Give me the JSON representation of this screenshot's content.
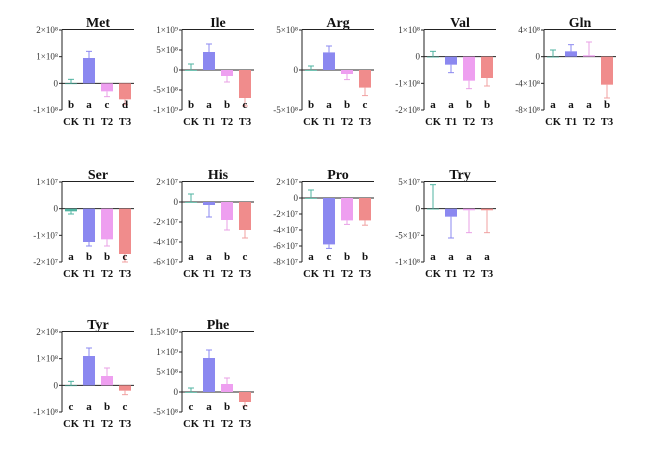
{
  "colors": {
    "CK": "#4fb3a0",
    "T1": "#8b88f0",
    "T2": "#ee9ff0",
    "T3": "#f08c8c",
    "errorbar": {
      "CK": "#4fb3a0",
      "T1": "#8b88f0",
      "T2": "#e8a0e6",
      "T3": "#f0a0a0"
    }
  },
  "chart_data": [
    {
      "type": "bar",
      "title": "Met",
      "categories": [
        "CK",
        "T1",
        "T2",
        "T3"
      ],
      "values": [
        0,
        95000000,
        -30000000,
        -60000000
      ],
      "errors": [
        15000000,
        25000000,
        20000000,
        20000000
      ],
      "significance": [
        "b",
        "a",
        "c",
        "d"
      ],
      "ylim": [
        -100000000,
        200000000
      ],
      "yticks": [
        {
          "v": 200000000,
          "label": "2×10⁸"
        },
        {
          "v": 100000000,
          "label": "1×10⁸"
        },
        {
          "v": 0,
          "label": "0"
        },
        {
          "v": -100000000,
          "label": "-1×10⁸"
        }
      ]
    },
    {
      "type": "bar",
      "title": "Ile",
      "categories": [
        "CK",
        "T1",
        "T2",
        "T3"
      ],
      "values": [
        0,
        450000000,
        -150000000,
        -700000000
      ],
      "errors": [
        150000000,
        200000000,
        150000000,
        200000000
      ],
      "significance": [
        "b",
        "a",
        "b",
        "c"
      ],
      "ylim": [
        -1000000000,
        1000000000
      ],
      "yticks": [
        {
          "v": 1000000000,
          "label": "1×10⁹"
        },
        {
          "v": 500000000,
          "label": "5×10⁸"
        },
        {
          "v": 0,
          "label": "0"
        },
        {
          "v": -500000000,
          "label": "-5×10⁸"
        },
        {
          "v": -1000000000,
          "label": "-1×10⁹"
        }
      ]
    },
    {
      "type": "bar",
      "title": "Arg",
      "categories": [
        "CK",
        "T1",
        "T2",
        "T3"
      ],
      "values": [
        0,
        220000000,
        -50000000,
        -220000000
      ],
      "errors": [
        50000000,
        80000000,
        70000000,
        100000000
      ],
      "significance": [
        "b",
        "a",
        "b",
        "c"
      ],
      "ylim": [
        -500000000,
        500000000
      ],
      "yticks": [
        {
          "v": 500000000,
          "label": "5×10⁸"
        },
        {
          "v": 0,
          "label": "0"
        },
        {
          "v": -500000000,
          "label": "-5×10⁸"
        }
      ]
    },
    {
      "type": "bar",
      "title": "Val",
      "categories": [
        "CK",
        "T1",
        "T2",
        "T3"
      ],
      "values": [
        0,
        -30000000,
        -90000000,
        -80000000
      ],
      "errors": [
        20000000,
        30000000,
        30000000,
        30000000
      ],
      "significance": [
        "a",
        "a",
        "b",
        "b"
      ],
      "ylim": [
        -200000000,
        100000000
      ],
      "yticks": [
        {
          "v": 100000000,
          "label": "1×10⁸"
        },
        {
          "v": 0,
          "label": "0"
        },
        {
          "v": -100000000,
          "label": "-1×10⁸"
        },
        {
          "v": -200000000,
          "label": "-2×10⁸"
        }
      ]
    },
    {
      "type": "bar",
      "title": "Gln",
      "categories": [
        "CK",
        "T1",
        "T2",
        "T3"
      ],
      "values": [
        0,
        80000000,
        20000000,
        -420000000
      ],
      "errors": [
        100000000,
        100000000,
        200000000,
        200000000
      ],
      "significance": [
        "a",
        "a",
        "a",
        "b"
      ],
      "ylim": [
        -800000000,
        400000000
      ],
      "yticks": [
        {
          "v": 400000000,
          "label": "4×10⁸"
        },
        {
          "v": 0,
          "label": "0"
        },
        {
          "v": -400000000,
          "label": "-4×10⁸"
        },
        {
          "v": -800000000,
          "label": "-8×10⁸"
        }
      ]
    },
    {
      "type": "bar",
      "title": "Ser",
      "categories": [
        "CK",
        "T1",
        "T2",
        "T3"
      ],
      "values": [
        -1000000,
        -12500000,
        -11500000,
        -17000000
      ],
      "errors": [
        1000000,
        1500000,
        2500000,
        3000000
      ],
      "significance": [
        "a",
        "b",
        "b",
        "c"
      ],
      "ylim": [
        -20000000,
        10000000
      ],
      "yticks": [
        {
          "v": 10000000,
          "label": "1×10⁷"
        },
        {
          "v": 0,
          "label": "0"
        },
        {
          "v": -10000000,
          "label": "-1×10⁷"
        },
        {
          "v": -20000000,
          "label": "-2×10⁷"
        }
      ]
    },
    {
      "type": "bar",
      "title": "His",
      "categories": [
        "CK",
        "T1",
        "T2",
        "T3"
      ],
      "values": [
        0,
        -3000000,
        -18000000,
        -28000000
      ],
      "errors": [
        8000000,
        12000000,
        10000000,
        8000000
      ],
      "significance": [
        "a",
        "a",
        "b",
        "c"
      ],
      "ylim": [
        -60000000,
        20000000
      ],
      "yticks": [
        {
          "v": 20000000,
          "label": "2×10⁷"
        },
        {
          "v": 0,
          "label": "0"
        },
        {
          "v": -20000000,
          "label": "-2×10⁷"
        },
        {
          "v": -40000000,
          "label": "-4×10⁷"
        },
        {
          "v": -60000000,
          "label": "-6×10⁷"
        }
      ]
    },
    {
      "type": "bar",
      "title": "Pro",
      "categories": [
        "CK",
        "T1",
        "T2",
        "T3"
      ],
      "values": [
        0,
        -58000000,
        -28000000,
        -28000000
      ],
      "errors": [
        10000000,
        5000000,
        5000000,
        6000000
      ],
      "significance": [
        "a",
        "c",
        "b",
        "b"
      ],
      "ylim": [
        -80000000,
        20000000
      ],
      "yticks": [
        {
          "v": 20000000,
          "label": "2×10⁷"
        },
        {
          "v": 0,
          "label": "0"
        },
        {
          "v": -20000000,
          "label": "-2×10⁷"
        },
        {
          "v": -40000000,
          "label": "-4×10⁷"
        },
        {
          "v": -60000000,
          "label": "-6×10⁷"
        },
        {
          "v": -80000000,
          "label": "-8×10⁷"
        }
      ]
    },
    {
      "type": "bar",
      "title": "Try",
      "categories": [
        "CK",
        "T1",
        "T2",
        "T3"
      ],
      "values": [
        0,
        -15000000,
        -3000000,
        -3000000
      ],
      "errors": [
        45000000,
        40000000,
        42000000,
        42000000
      ],
      "significance": [
        "a",
        "a",
        "a",
        "a"
      ],
      "ylim": [
        -100000000,
        50000000
      ],
      "yticks": [
        {
          "v": 50000000,
          "label": "5×10⁷"
        },
        {
          "v": 0,
          "label": "0"
        },
        {
          "v": -50000000,
          "label": "-5×10⁷"
        },
        {
          "v": -100000000,
          "label": "-1×10⁸"
        }
      ]
    },
    {
      "type": "bar",
      "title": "Tyr",
      "categories": [
        "CK",
        "T1",
        "T2",
        "T3"
      ],
      "values": [
        0,
        110000000,
        35000000,
        -20000000
      ],
      "errors": [
        15000000,
        30000000,
        30000000,
        15000000
      ],
      "significance": [
        "c",
        "a",
        "b",
        "c"
      ],
      "ylim": [
        -100000000,
        200000000
      ],
      "yticks": [
        {
          "v": 200000000,
          "label": "2×10⁸"
        },
        {
          "v": 100000000,
          "label": "1×10⁸"
        },
        {
          "v": 0,
          "label": "0"
        },
        {
          "v": -100000000,
          "label": "-1×10⁸"
        }
      ]
    },
    {
      "type": "bar",
      "title": "Phe",
      "categories": [
        "CK",
        "T1",
        "T2",
        "T3"
      ],
      "values": [
        0,
        850000000,
        200000000,
        -250000000
      ],
      "errors": [
        100000000,
        200000000,
        150000000,
        100000000
      ],
      "significance": [
        "c",
        "a",
        "b",
        "c"
      ],
      "ylim": [
        -500000000,
        1500000000
      ],
      "yticks": [
        {
          "v": 1500000000,
          "label": "1.5×10⁹"
        },
        {
          "v": 1000000000,
          "label": "1×10⁹"
        },
        {
          "v": 500000000,
          "label": "5×10⁸"
        },
        {
          "v": 0,
          "label": "0"
        },
        {
          "v": -500000000,
          "label": "-5×10⁸"
        }
      ]
    }
  ]
}
